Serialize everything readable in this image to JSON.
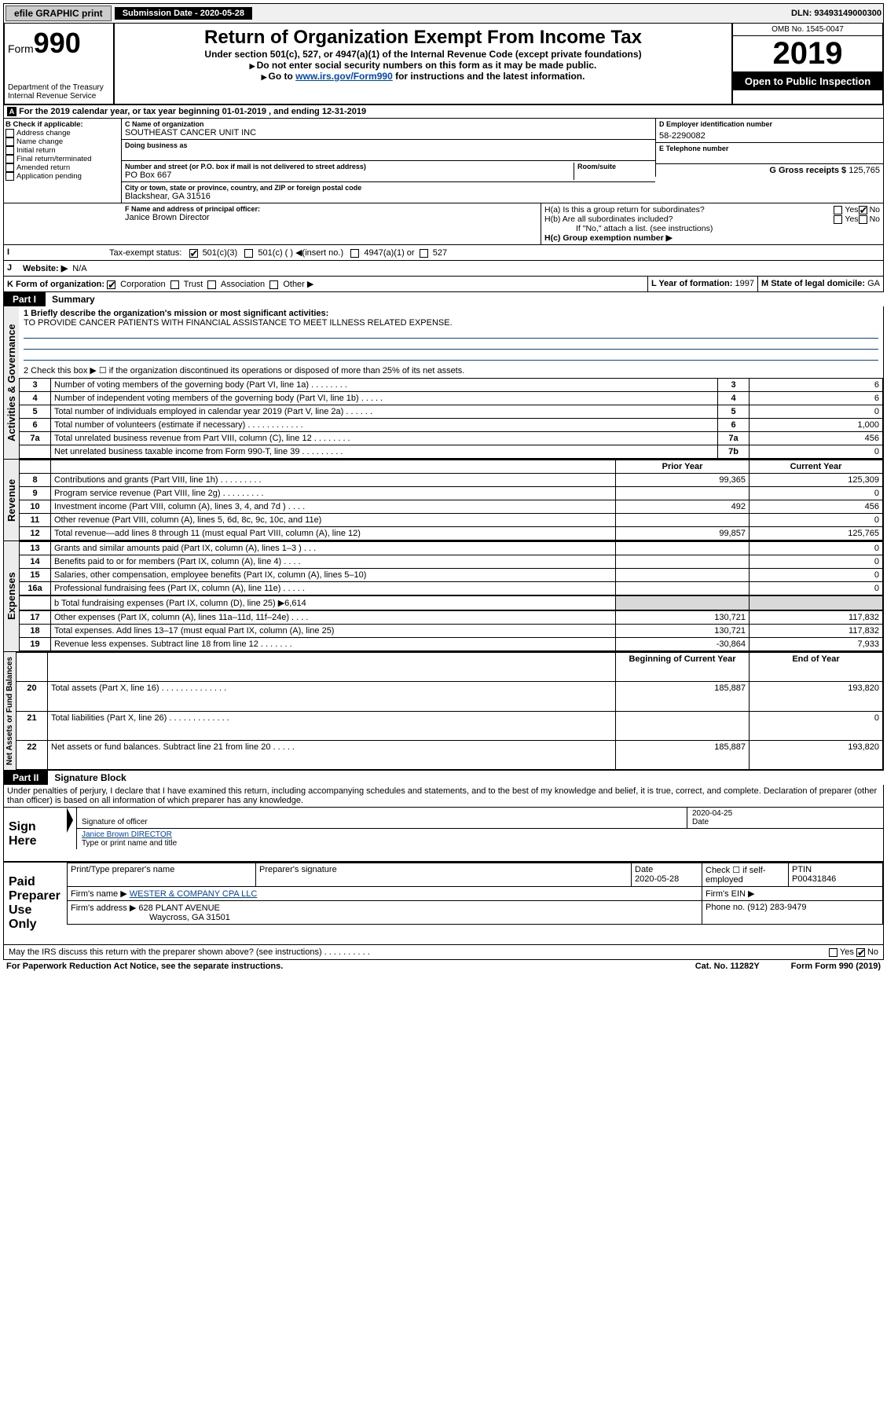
{
  "topbar": {
    "efile": "efile GRAPHIC print",
    "subdate_lbl": "Submission Date - 2020-05-28",
    "dln": "DLN: 93493149000300"
  },
  "header": {
    "form_pre": "Form",
    "form_num": "990",
    "dept": "Department of the Treasury\nInternal Revenue Service",
    "title": "Return of Organization Exempt From Income Tax",
    "under": "Under section 501(c), 527, or 4947(a)(1) of the Internal Revenue Code (except private foundations)",
    "nossn": "Do not enter social security numbers on this form as it may be made public.",
    "goto_pre": "Go to ",
    "goto_link": "www.irs.gov/Form990",
    "goto_post": " for instructions and the latest information.",
    "omb": "OMB No. 1545-0047",
    "year": "2019",
    "open": "Open to Public Inspection",
    "a_line": "For the 2019 calendar year, or tax year beginning 01-01-2019   , and ending 12-31-2019"
  },
  "B": {
    "lbl": "B Check if applicable:",
    "opts": [
      "Address change",
      "Name change",
      "Initial return",
      "Final return/terminated",
      "Amended return",
      "Application pending"
    ]
  },
  "C": {
    "name_lbl": "C Name of organization",
    "name": "SOUTHEAST CANCER UNIT INC",
    "dba_lbl": "Doing business as",
    "street_lbl": "Number and street (or P.O. box if mail is not delivered to street address)",
    "room_lbl": "Room/suite",
    "street": "PO Box 667",
    "city_lbl": "City or town, state or province, country, and ZIP or foreign postal code",
    "city": "Blackshear, GA  31516"
  },
  "D": {
    "lbl": "D Employer identification number",
    "val": "58-2290082"
  },
  "E": {
    "lbl": "E Telephone number",
    "val": ""
  },
  "G": {
    "lbl": "G Gross receipts $",
    "val": "125,765"
  },
  "F": {
    "lbl": "F  Name and address of principal officer:",
    "val": "Janice Brown Director"
  },
  "H": {
    "a": "H(a)  Is this a group return for subordinates?",
    "b": "H(b)  Are all subordinates included?",
    "b_note": "If \"No,\" attach a list. (see instructions)",
    "c": "H(c)  Group exemption number ▶",
    "yes": "Yes",
    "no": "No"
  },
  "I": {
    "lbl": "Tax-exempt status:",
    "o1": "501(c)(3)",
    "o2": "501(c) (  ) ◀(insert no.)",
    "o3": "4947(a)(1) or",
    "o4": "527"
  },
  "J": {
    "lbl": "Website: ▶",
    "val": "N/A"
  },
  "K": {
    "lbl": "K Form of organization:",
    "o1": "Corporation",
    "o2": "Trust",
    "o3": "Association",
    "o4": "Other ▶"
  },
  "L": {
    "lbl": "L Year of formation:",
    "val": "1997"
  },
  "M": {
    "lbl": "M State of legal domicile:",
    "val": "GA"
  },
  "PartI": {
    "hdr": "Part I",
    "title": "Summary",
    "q1lbl": "1  Briefly describe the organization's mission or most significant activities:",
    "q1": "TO PROVIDE CANCER PATIENTS WITH FINANCIAL ASSISTANCE TO MEET ILLNESS RELATED EXPENSE.",
    "q2": "2   Check this box ▶ ☐  if the organization discontinued its operations or disposed of more than 25% of its net assets.",
    "gov": [
      {
        "n": "3",
        "t": "Number of voting members of the governing body (Part VI, line 1a)  .    .    .    .    .    .    .    .",
        "b": "3",
        "v": "6"
      },
      {
        "n": "4",
        "t": "Number of independent voting members of the governing body (Part VI, line 1b)  .    .    .    .    .",
        "b": "4",
        "v": "6"
      },
      {
        "n": "5",
        "t": "Total number of individuals employed in calendar year 2019 (Part V, line 2a)  .    .    .    .    .    .",
        "b": "5",
        "v": "0"
      },
      {
        "n": "6",
        "t": "Total number of volunteers (estimate if necessary)  .    .    .    .    .    .    .    .    .    .    .    .",
        "b": "6",
        "v": "1,000"
      },
      {
        "n": "7a",
        "t": "Total unrelated business revenue from Part VIII, column (C), line 12  .    .    .    .    .    .    .    .",
        "b": "7a",
        "v": "456"
      },
      {
        "n": "",
        "t": "Net unrelated business taxable income from Form 990-T, line 39  .    .    .    .    .    .    .    .    .",
        "b": "7b",
        "v": "0"
      }
    ],
    "py": "Prior Year",
    "cy": "Current Year",
    "rev": [
      {
        "n": "8",
        "t": "Contributions and grants (Part VIII, line 1h)  .    .    .    .    .    .    .    .    .",
        "p": "99,365",
        "c": "125,309"
      },
      {
        "n": "9",
        "t": "Program service revenue (Part VIII, line 2g)  .    .    .    .    .    .    .    .    .",
        "p": "",
        "c": "0"
      },
      {
        "n": "10",
        "t": "Investment income (Part VIII, column (A), lines 3, 4, and 7d )  .    .    .    .",
        "p": "492",
        "c": "456"
      },
      {
        "n": "11",
        "t": "Other revenue (Part VIII, column (A), lines 5, 6d, 8c, 9c, 10c, and 11e)",
        "p": "",
        "c": "0"
      },
      {
        "n": "12",
        "t": "Total revenue—add lines 8 through 11 (must equal Part VIII, column (A), line 12)",
        "p": "99,857",
        "c": "125,765"
      }
    ],
    "exp": [
      {
        "n": "13",
        "t": "Grants and similar amounts paid (Part IX, column (A), lines 1–3 )  .    .    .",
        "p": "",
        "c": "0"
      },
      {
        "n": "14",
        "t": "Benefits paid to or for members (Part IX, column (A), line 4)  .    .    .    .",
        "p": "",
        "c": "0"
      },
      {
        "n": "15",
        "t": "Salaries, other compensation, employee benefits (Part IX, column (A), lines 5–10)",
        "p": "",
        "c": "0"
      },
      {
        "n": "16a",
        "t": "Professional fundraising fees (Part IX, column (A), line 11e)  .    .    .    .    .",
        "p": "",
        "c": "0"
      }
    ],
    "exp_b": "b  Total fundraising expenses (Part IX, column (D), line 25) ▶6,614",
    "exp2": [
      {
        "n": "17",
        "t": "Other expenses (Part IX, column (A), lines 11a–11d, 11f–24e)  .    .    .    .",
        "p": "130,721",
        "c": "117,832"
      },
      {
        "n": "18",
        "t": "Total expenses. Add lines 13–17 (must equal Part IX, column (A), line 25)",
        "p": "130,721",
        "c": "117,832"
      },
      {
        "n": "19",
        "t": "Revenue less expenses. Subtract line 18 from line 12  .    .    .    .    .    .    .",
        "p": "-30,864",
        "c": "7,933"
      }
    ],
    "bcy": "Beginning of Current Year",
    "ey": "End of Year",
    "na": [
      {
        "n": "20",
        "t": "Total assets (Part X, line 16)  .    .    .    .    .    .    .    .    .    .    .    .    .    .",
        "p": "185,887",
        "c": "193,820"
      },
      {
        "n": "21",
        "t": "Total liabilities (Part X, line 26)  .    .    .    .    .    .    .    .    .    .    .    .    .",
        "p": "",
        "c": "0"
      },
      {
        "n": "22",
        "t": "Net assets or fund balances. Subtract line 21 from line 20  .    .    .    .    .",
        "p": "185,887",
        "c": "193,820"
      }
    ],
    "vlabels": {
      "gov": "Activities & Governance",
      "rev": "Revenue",
      "exp": "Expenses",
      "na": "Net Assets or\nFund Balances"
    }
  },
  "PartII": {
    "hdr": "Part II",
    "title": "Signature Block",
    "decl": "Under penalties of perjury, I declare that I have examined this return, including accompanying schedules and statements, and to the best of my knowledge and belief, it is true, correct, and complete. Declaration of preparer (other than officer) is based on all information of which preparer has any knowledge.",
    "sign": "Sign Here",
    "sigoff": "Signature of officer",
    "date_l": "Date",
    "date": "2020-04-25",
    "name_title": "Janice Brown  DIRECTOR",
    "tpn": "Type or print name and title",
    "paid": "Paid Preparer Use Only",
    "pp_name_l": "Print/Type preparer's name",
    "pp_sig_l": "Preparer's signature",
    "pp_date_l": "Date",
    "pp_date": "2020-05-28",
    "chk": "Check ☐ if self-employed",
    "ptin_l": "PTIN",
    "ptin": "P00431846",
    "firm_l": "Firm's name   ▶",
    "firm": "WESTER & COMPANY CPA LLC",
    "ein_l": "Firm's EIN ▶",
    "addr_l": "Firm's address ▶",
    "addr1": "628 PLANT AVENUE",
    "addr2": "Waycross, GA  31501",
    "phone_l": "Phone no.",
    "phone": "(912) 283-9479",
    "discuss": "May the IRS discuss this return with the preparer shown above? (see instructions)   .    .    .    .    .    .    .    .    .    .",
    "yes": "Yes",
    "no": "No"
  },
  "footer": {
    "pra": "For Paperwork Reduction Act Notice, see the separate instructions.",
    "cat": "Cat. No. 11282Y",
    "form": "Form 990 (2019)"
  }
}
